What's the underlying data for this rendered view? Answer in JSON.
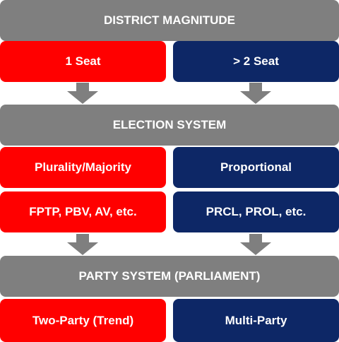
{
  "colors": {
    "gray": "#7f7f7f",
    "red": "#ff0000",
    "navy": "#0d2766",
    "arrow": "#7f7f7f"
  },
  "header_1": "DISTRICT MAGNITUDE",
  "row_1": {
    "left": "1 Seat",
    "right": "> 2 Seat"
  },
  "header_2": "ELECTION SYSTEM",
  "row_2": {
    "left": "Plurality/Majority",
    "right": "Proportional"
  },
  "row_3": {
    "left": "FPTP, PBV, AV, etc.",
    "right": "PRCL, PROL, etc."
  },
  "header_3": "PARTY SYSTEM (PARLIAMENT)",
  "row_4": {
    "left": "Two-Party (Trend)",
    "right": "Multi-Party"
  },
  "arrows": [
    "down-arrow-icon",
    "down-arrow-icon",
    "down-arrow-icon",
    "down-arrow-icon"
  ]
}
